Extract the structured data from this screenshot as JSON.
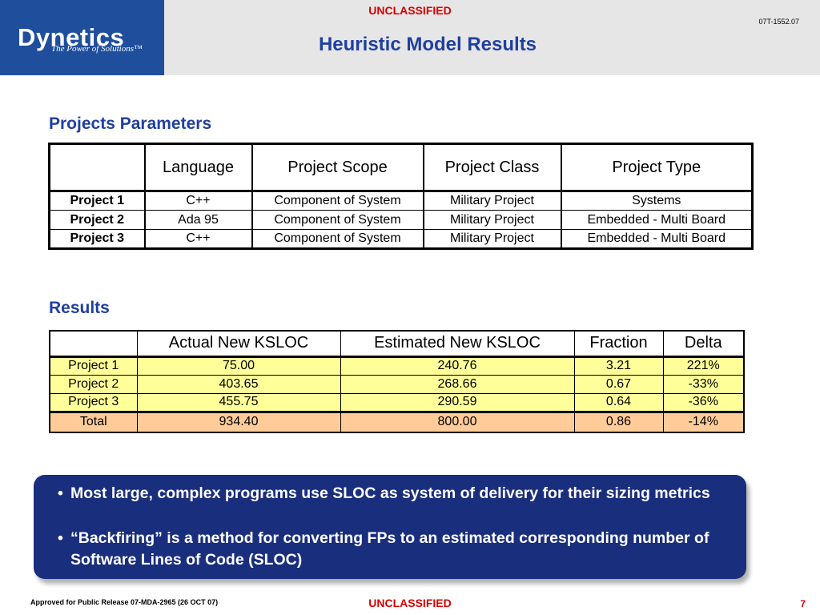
{
  "header": {
    "classification": "UNCLASSIFIED",
    "doc_id": "07T-1552.07",
    "title": "Heuristic Model Results",
    "logo_name": "Dynetics",
    "logo_tagline": "The Power of Solutions™"
  },
  "params_section": {
    "title": "Projects Parameters",
    "columns": [
      "",
      "Language",
      "Project Scope",
      "Project Class",
      "Project Type"
    ],
    "rows": [
      [
        "Project 1",
        "C++",
        "Component of System",
        "Military Project",
        "Systems"
      ],
      [
        "Project 2",
        "Ada 95",
        "Component of System",
        "Military Project",
        "Embedded - Multi Board"
      ],
      [
        "Project 3",
        "C++",
        "Component of System",
        "Military Project",
        "Embedded - Multi Board"
      ]
    ]
  },
  "results_section": {
    "title": "Results",
    "columns": [
      "",
      "Actual New KSLOC",
      "Estimated New KSLOC",
      "Fraction",
      "Delta"
    ],
    "rows": [
      [
        "Project 1",
        "75.00",
        "240.76",
        "3.21",
        "221%"
      ],
      [
        "Project 2",
        "403.65",
        "268.66",
        "0.67",
        "-33%"
      ],
      [
        "Project 3",
        "455.75",
        "290.59",
        "0.64",
        "-36%"
      ]
    ],
    "total": [
      "Total",
      "934.40",
      "800.00",
      "0.86",
      "-14%"
    ],
    "colors": {
      "row_fill": "#ffff99",
      "total_fill": "#ffcc99"
    }
  },
  "bullets": [
    "Most large, complex programs use SLOC as system of delivery for their sizing metrics",
    "“Backfiring” is a method for converting FPs to an estimated corresponding number of Software Lines of Code (SLOC)"
  ],
  "footer": {
    "approved": "Approved for Public Release 07-MDA-2965 (26 OCT 07)",
    "classification": "UNCLASSIFIED",
    "page": "7"
  },
  "colors": {
    "brand_blue": "#1f4e9c",
    "title_blue": "#1f3fa0",
    "classification_red": "#d80000",
    "bullet_box": "#1a2e7e"
  }
}
